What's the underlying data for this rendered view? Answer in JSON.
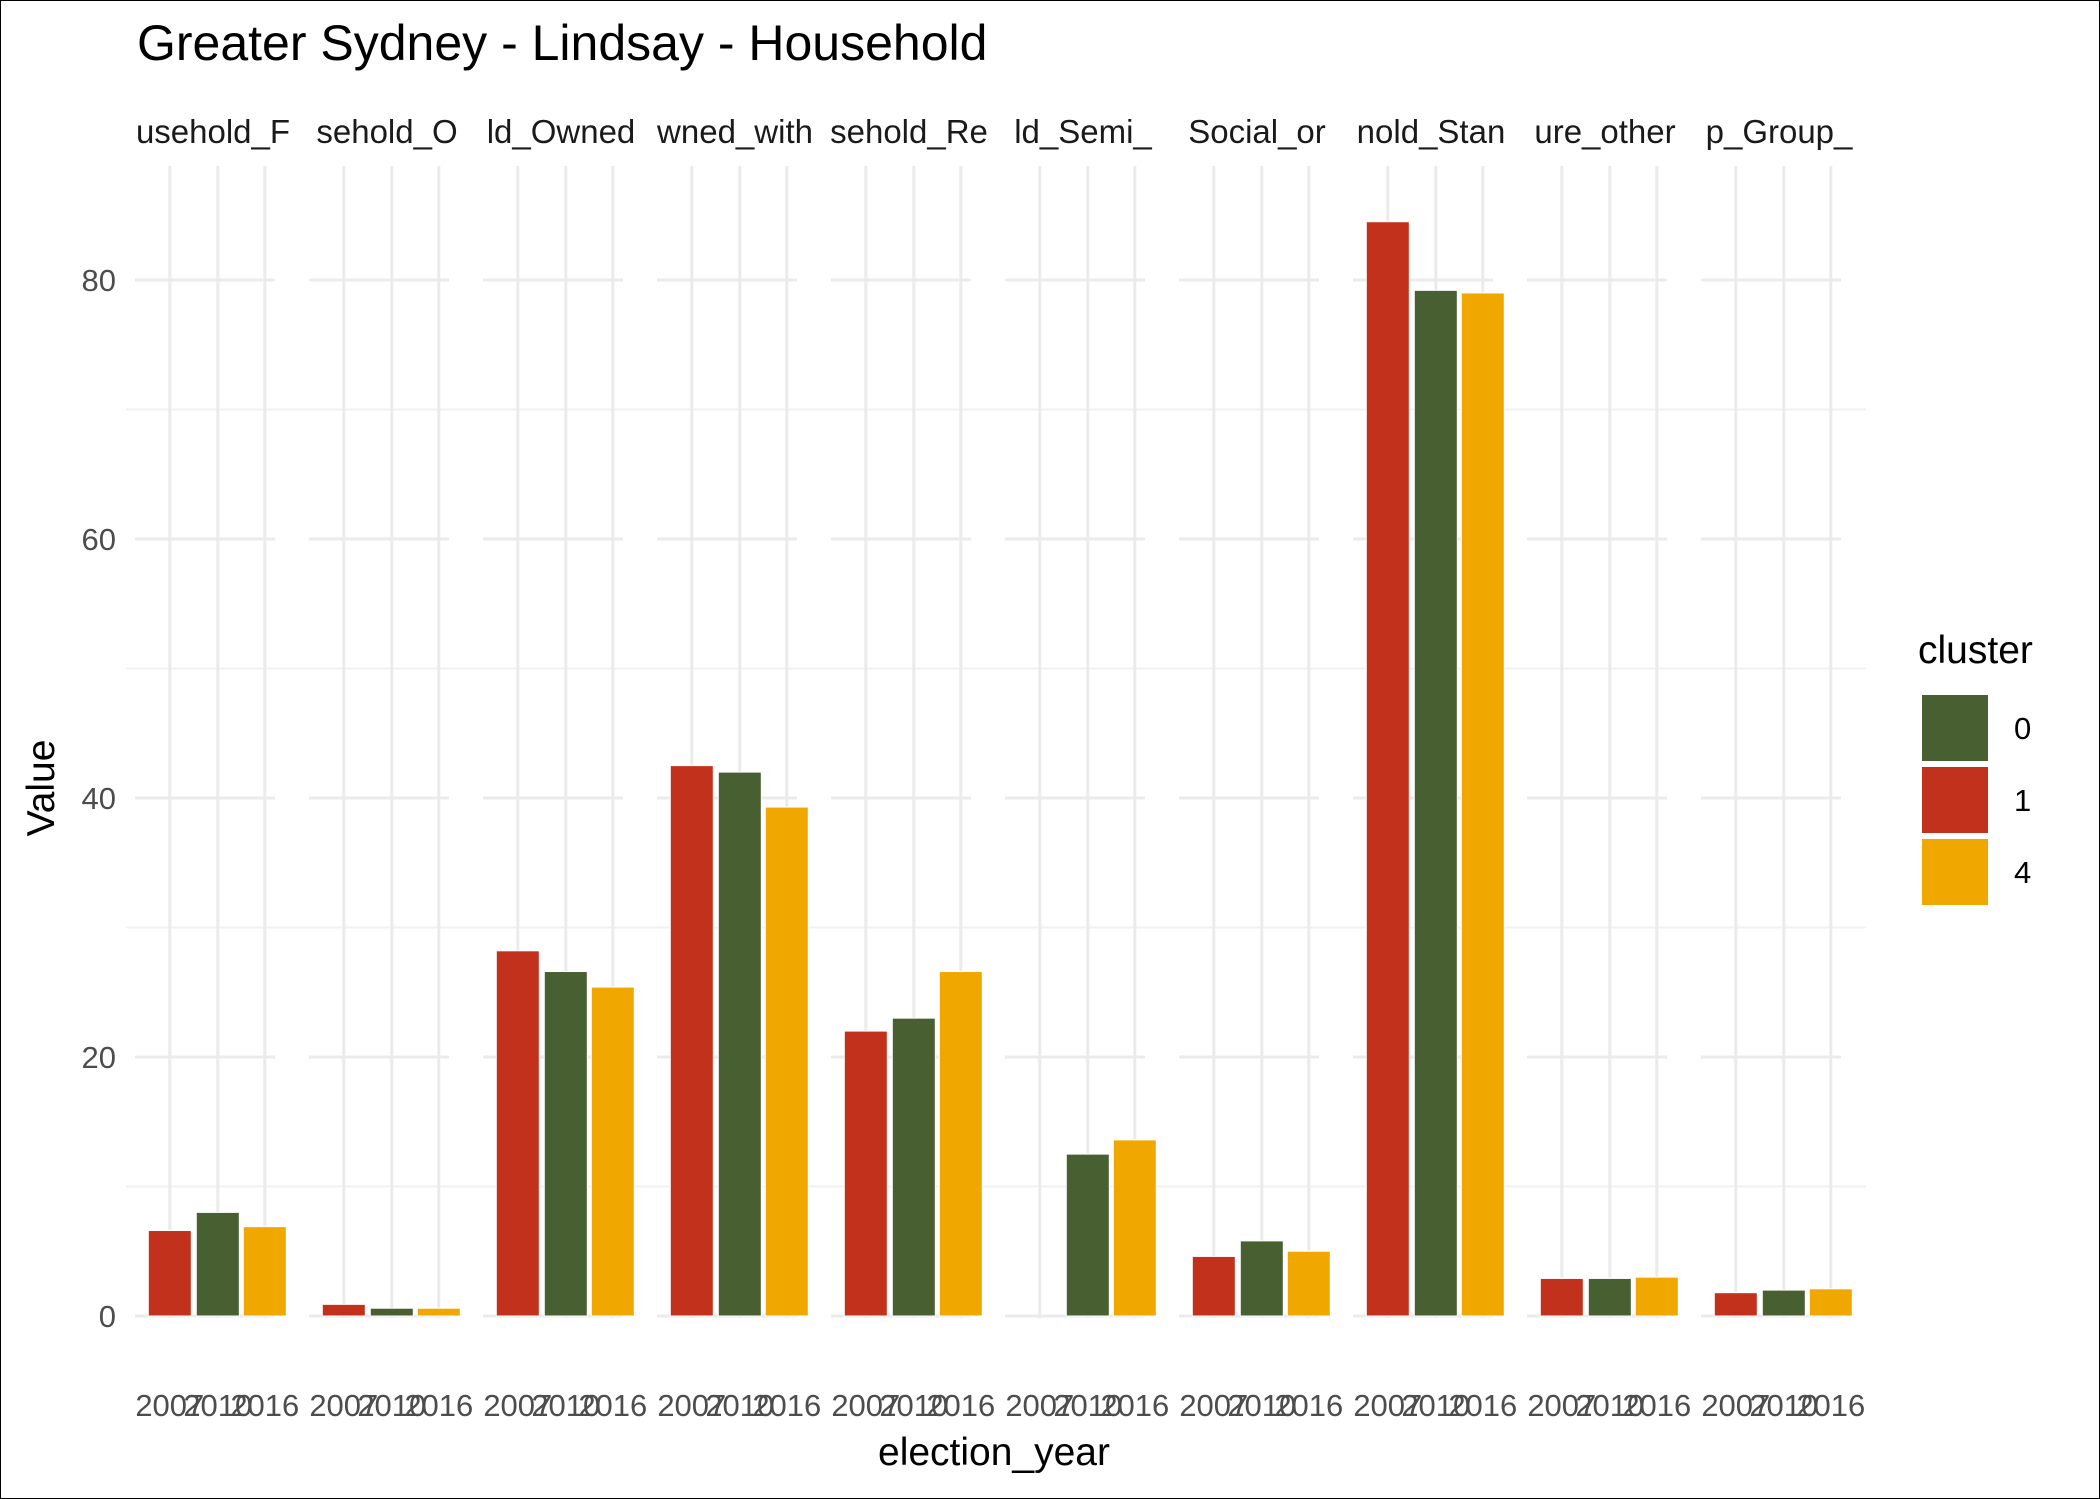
{
  "chart_data": {
    "type": "bar",
    "title": "Greater Sydney - Lindsay - Household",
    "xlabel": "election_year",
    "ylabel": "Value",
    "ylim": [
      0,
      88
    ],
    "y_ticks": [
      0,
      20,
      40,
      60,
      80
    ],
    "grid": true,
    "legend_position": "right",
    "legend": {
      "title": "cluster",
      "entries": [
        {
          "label": "0",
          "color": "#475f31"
        },
        {
          "label": "1",
          "color": "#c1311b"
        },
        {
          "label": "4",
          "color": "#f0a800"
        }
      ]
    },
    "categories": [
      "2007",
      "2010",
      "2016"
    ],
    "panels": [
      {
        "strip": "usehold_F",
        "bars": [
          {
            "x": "2007",
            "cluster": "1",
            "value": 6.6
          },
          {
            "x": "2010",
            "cluster": "0",
            "value": 8.0
          },
          {
            "x": "2016",
            "cluster": "4",
            "value": 6.9
          }
        ]
      },
      {
        "strip": "sehold_O",
        "bars": [
          {
            "x": "2007",
            "cluster": "1",
            "value": 0.9
          },
          {
            "x": "2010",
            "cluster": "0",
            "value": 0.6
          },
          {
            "x": "2016",
            "cluster": "4",
            "value": 0.6
          }
        ]
      },
      {
        "strip": "ld_Owned",
        "bars": [
          {
            "x": "2007",
            "cluster": "1",
            "value": 28.2
          },
          {
            "x": "2010",
            "cluster": "0",
            "value": 26.6
          },
          {
            "x": "2016",
            "cluster": "4",
            "value": 25.4
          }
        ]
      },
      {
        "strip": "wned_with",
        "bars": [
          {
            "x": "2007",
            "cluster": "1",
            "value": 42.5
          },
          {
            "x": "2010",
            "cluster": "0",
            "value": 42.0
          },
          {
            "x": "2016",
            "cluster": "4",
            "value": 39.3
          }
        ]
      },
      {
        "strip": "sehold_Re",
        "bars": [
          {
            "x": "2007",
            "cluster": "1",
            "value": 22.0
          },
          {
            "x": "2010",
            "cluster": "0",
            "value": 23.0
          },
          {
            "x": "2016",
            "cluster": "4",
            "value": 26.6
          }
        ]
      },
      {
        "strip": "ld_Semi_",
        "bars": [
          {
            "x": "2010",
            "cluster": "0",
            "value": 12.5
          },
          {
            "x": "2016",
            "cluster": "4",
            "value": 13.6
          }
        ]
      },
      {
        "strip": "Social_or",
        "bars": [
          {
            "x": "2007",
            "cluster": "1",
            "value": 4.6
          },
          {
            "x": "2010",
            "cluster": "0",
            "value": 5.8
          },
          {
            "x": "2016",
            "cluster": "4",
            "value": 5.0
          }
        ]
      },
      {
        "strip": "nold_Stan",
        "bars": [
          {
            "x": "2007",
            "cluster": "1",
            "value": 84.5
          },
          {
            "x": "2010",
            "cluster": "0",
            "value": 79.2
          },
          {
            "x": "2016",
            "cluster": "4",
            "value": 79.0
          }
        ]
      },
      {
        "strip": "ure_other",
        "bars": [
          {
            "x": "2007",
            "cluster": "1",
            "value": 2.9
          },
          {
            "x": "2010",
            "cluster": "0",
            "value": 2.9
          },
          {
            "x": "2016",
            "cluster": "4",
            "value": 3.0
          }
        ]
      },
      {
        "strip": "p_Group_",
        "bars": [
          {
            "x": "2007",
            "cluster": "1",
            "value": 1.8
          },
          {
            "x": "2010",
            "cluster": "0",
            "value": 2.0
          },
          {
            "x": "2016",
            "cluster": "4",
            "value": 2.1
          }
        ]
      }
    ]
  }
}
